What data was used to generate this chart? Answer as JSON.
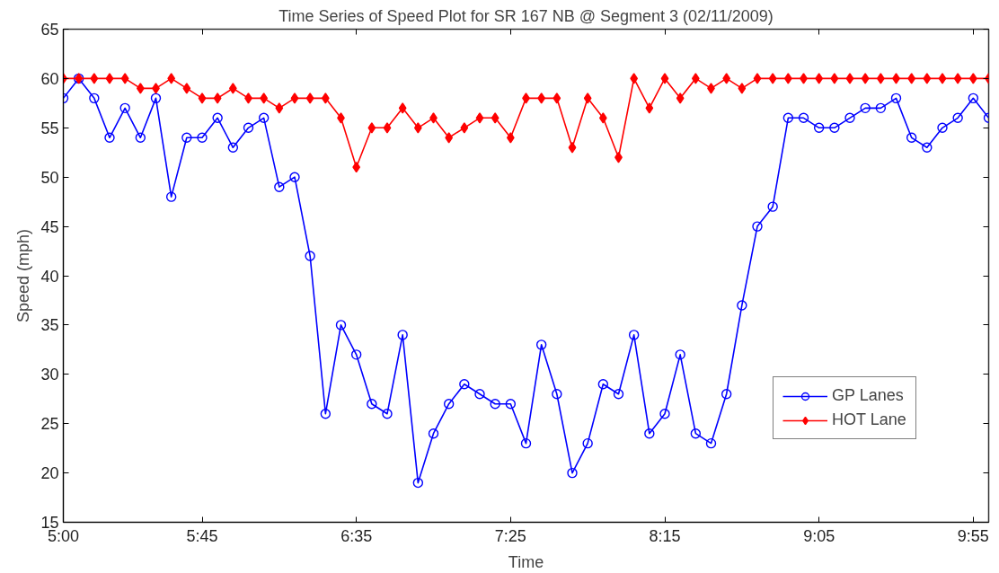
{
  "chart_data": {
    "type": "line",
    "title": "Time Series of Speed Plot for SR 167 NB @ Segment 3 (02/11/2009)",
    "xlabel": "Time",
    "ylabel": "Speed (mph)",
    "x": [
      5.0,
      5.0833,
      5.1667,
      5.25,
      5.3333,
      5.4167,
      5.5,
      5.5833,
      5.6667,
      5.75,
      5.8333,
      5.9167,
      6.0,
      6.0833,
      6.1667,
      6.25,
      6.3333,
      6.4167,
      6.5,
      6.5833,
      6.6667,
      6.75,
      6.8333,
      6.9167,
      7.0,
      7.0833,
      7.1667,
      7.25,
      7.3333,
      7.4167,
      7.5,
      7.5833,
      7.6667,
      7.75,
      7.8333,
      7.9167,
      8.0,
      8.0833,
      8.1667,
      8.25,
      8.3333,
      8.4167,
      8.5,
      8.5833,
      8.6667,
      8.75,
      8.8333,
      8.9167,
      9.0,
      9.0833,
      9.1667,
      9.25,
      9.3333,
      9.4167,
      9.5,
      9.5833,
      9.6667,
      9.75,
      9.8333,
      9.9167,
      10.0
    ],
    "series": [
      {
        "name": "GP Lanes",
        "color": "#0000ff",
        "marker": "circle",
        "values": [
          58,
          60,
          58,
          54,
          57,
          54,
          58,
          48,
          54,
          54,
          56,
          53,
          55,
          56,
          49,
          50,
          42,
          26,
          35,
          32,
          27,
          26,
          34,
          19,
          24,
          27,
          29,
          28,
          27,
          27,
          23,
          33,
          28,
          20,
          23,
          29,
          28,
          34,
          24,
          26,
          32,
          24,
          23,
          28,
          37,
          45,
          47,
          56,
          56,
          55,
          55,
          56,
          57,
          57,
          58,
          54,
          53,
          55,
          56,
          58,
          56
        ]
      },
      {
        "name": "HOT Lane",
        "color": "#ff0000",
        "marker": "diamond",
        "values": [
          60,
          60,
          60,
          60,
          60,
          59,
          59,
          60,
          59,
          58,
          58,
          59,
          58,
          58,
          57,
          58,
          58,
          58,
          56,
          51,
          55,
          55,
          57,
          55,
          56,
          54,
          55,
          56,
          56,
          54,
          58,
          58,
          58,
          53,
          58,
          56,
          52,
          60,
          57,
          60,
          58,
          60,
          59,
          60,
          59,
          60,
          60,
          60,
          60,
          60,
          60,
          60,
          60,
          60,
          60,
          60,
          60,
          60,
          60,
          60,
          60
        ]
      }
    ],
    "xlim": [
      5.0,
      10.0
    ],
    "xticks": [
      {
        "value": 5.0,
        "label": "5:00"
      },
      {
        "value": 5.75,
        "label": "5:45"
      },
      {
        "value": 6.5833,
        "label": "6:35"
      },
      {
        "value": 7.4167,
        "label": "7:25"
      },
      {
        "value": 8.25,
        "label": "8:15"
      },
      {
        "value": 9.0833,
        "label": "9:05"
      },
      {
        "value": 9.9167,
        "label": "9:55"
      }
    ],
    "ylim": [
      15,
      65
    ],
    "yticks": [
      15,
      20,
      25,
      30,
      35,
      40,
      45,
      50,
      55,
      60,
      65
    ],
    "legend": "bottom right",
    "grid": false,
    "line_style": "solid"
  }
}
